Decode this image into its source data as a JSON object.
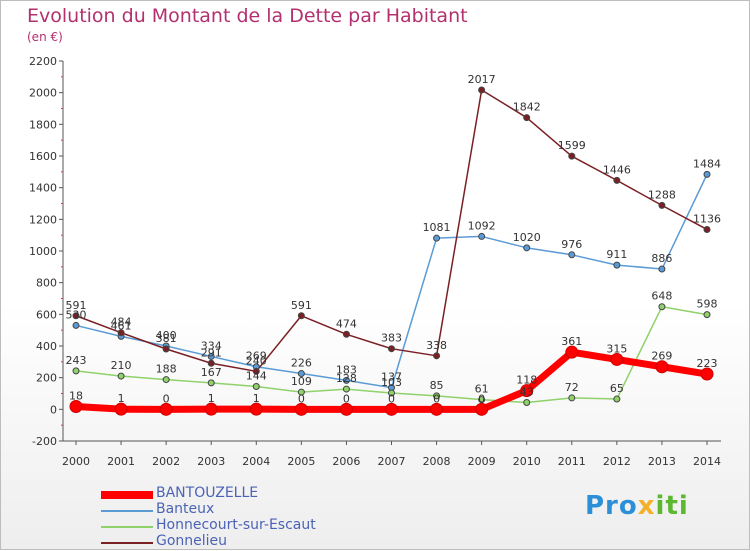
{
  "title": "Evolution du Montant de la Dette par Habitant",
  "subtitle": "(en €)",
  "logo": {
    "p1": "Pro",
    "p2": "x",
    "p3": "iti"
  },
  "chart_data": {
    "type": "line",
    "x": [
      "2000",
      "2001",
      "2002",
      "2003",
      "2004",
      "2005",
      "2006",
      "2007",
      "2008",
      "2009",
      "2010",
      "2011",
      "2012",
      "2013",
      "2014"
    ],
    "ylim": [
      -200,
      2200
    ],
    "yticks": [
      -200,
      0,
      200,
      400,
      600,
      800,
      1000,
      1200,
      1400,
      1600,
      1800,
      2000,
      2200
    ],
    "grid": false,
    "legend_position": "bottom-left",
    "series": [
      {
        "name": "BANTOUZELLE",
        "color": "#ff0000",
        "thick": true,
        "values": [
          18,
          1,
          0,
          1,
          1,
          0,
          0,
          0,
          0,
          0,
          118,
          361,
          315,
          269,
          223
        ]
      },
      {
        "name": "Banteux",
        "color": "#5b9bd5",
        "values": [
          530,
          461,
          400,
          334,
          269,
          226,
          183,
          137,
          1081,
          1092,
          1020,
          976,
          911,
          886,
          1484
        ]
      },
      {
        "name": "Honnecourt-sur-Escaut",
        "color": "#8fd16a",
        "values": [
          243,
          210,
          188,
          167,
          144,
          109,
          128,
          103,
          85,
          61,
          43,
          72,
          65,
          648,
          598
        ]
      },
      {
        "name": "Gonnelieu",
        "color": "#7a2024",
        "values": [
          591,
          484,
          381,
          291,
          240,
          591,
          474,
          383,
          338,
          2017,
          1842,
          1599,
          1446,
          1288,
          1136
        ]
      }
    ],
    "point_labels": [
      {
        "x": "2000",
        "text": "591"
      },
      {
        "x": "2000",
        "text": "530"
      },
      {
        "x": "2000",
        "text": "243"
      },
      {
        "x": "2000",
        "text": "18"
      },
      {
        "x": "2001",
        "text": "484"
      },
      {
        "x": "2001",
        "text": "461"
      },
      {
        "x": "2001",
        "text": "210"
      },
      {
        "x": "2001",
        "text": "1"
      },
      {
        "x": "2002",
        "text": "400"
      },
      {
        "x": "2002",
        "text": "381"
      },
      {
        "x": "2002",
        "text": "188"
      },
      {
        "x": "2002",
        "text": "0"
      },
      {
        "x": "2003",
        "text": "334"
      },
      {
        "x": "2003",
        "text": "291"
      },
      {
        "x": "2003",
        "text": "167"
      },
      {
        "x": "2003",
        "text": "1"
      },
      {
        "x": "2004",
        "text": "269"
      },
      {
        "x": "2004",
        "text": "240"
      },
      {
        "x": "2004",
        "text": "144"
      },
      {
        "x": "2004",
        "text": "1"
      },
      {
        "x": "2005",
        "text": "591"
      },
      {
        "x": "2005",
        "text": "226"
      },
      {
        "x": "2005",
        "text": "109"
      },
      {
        "x": "2005",
        "text": "0"
      },
      {
        "x": "2006",
        "text": "474"
      },
      {
        "x": "2006",
        "text": "183"
      },
      {
        "x": "2006",
        "text": "128"
      },
      {
        "x": "2006",
        "text": "0"
      },
      {
        "x": "2007",
        "text": "383"
      },
      {
        "x": "2007",
        "text": "137"
      },
      {
        "x": "2007",
        "text": "103"
      },
      {
        "x": "2007",
        "text": "0"
      },
      {
        "x": "2008",
        "text": "1081"
      },
      {
        "x": "2008",
        "text": "338"
      },
      {
        "x": "2008",
        "text": "85"
      },
      {
        "x": "2008",
        "text": "0"
      },
      {
        "x": "2009",
        "text": "2017"
      },
      {
        "x": "2009",
        "text": "1092"
      },
      {
        "x": "2009",
        "text": "61"
      },
      {
        "x": "2009",
        "text": "0"
      },
      {
        "x": "2010",
        "text": "1842"
      },
      {
        "x": "2010",
        "text": "1020"
      },
      {
        "x": "2010",
        "text": "118"
      },
      {
        "x": "2010",
        "text": "43"
      },
      {
        "x": "2011",
        "text": "1599"
      },
      {
        "x": "2011",
        "text": "976"
      },
      {
        "x": "2011",
        "text": "361"
      },
      {
        "x": "2011",
        "text": "72"
      },
      {
        "x": "2012",
        "text": "1446"
      },
      {
        "x": "2012",
        "text": "911"
      },
      {
        "x": "2012",
        "text": "315"
      },
      {
        "x": "2012",
        "text": "65"
      },
      {
        "x": "2013",
        "text": "1288"
      },
      {
        "x": "2013",
        "text": "886"
      },
      {
        "x": "2013",
        "text": "648"
      },
      {
        "x": "2013",
        "text": "269"
      },
      {
        "x": "2014",
        "text": "1484"
      },
      {
        "x": "2014",
        "text": "1136"
      },
      {
        "x": "2014",
        "text": "598"
      },
      {
        "x": "2014",
        "text": "223"
      }
    ]
  }
}
